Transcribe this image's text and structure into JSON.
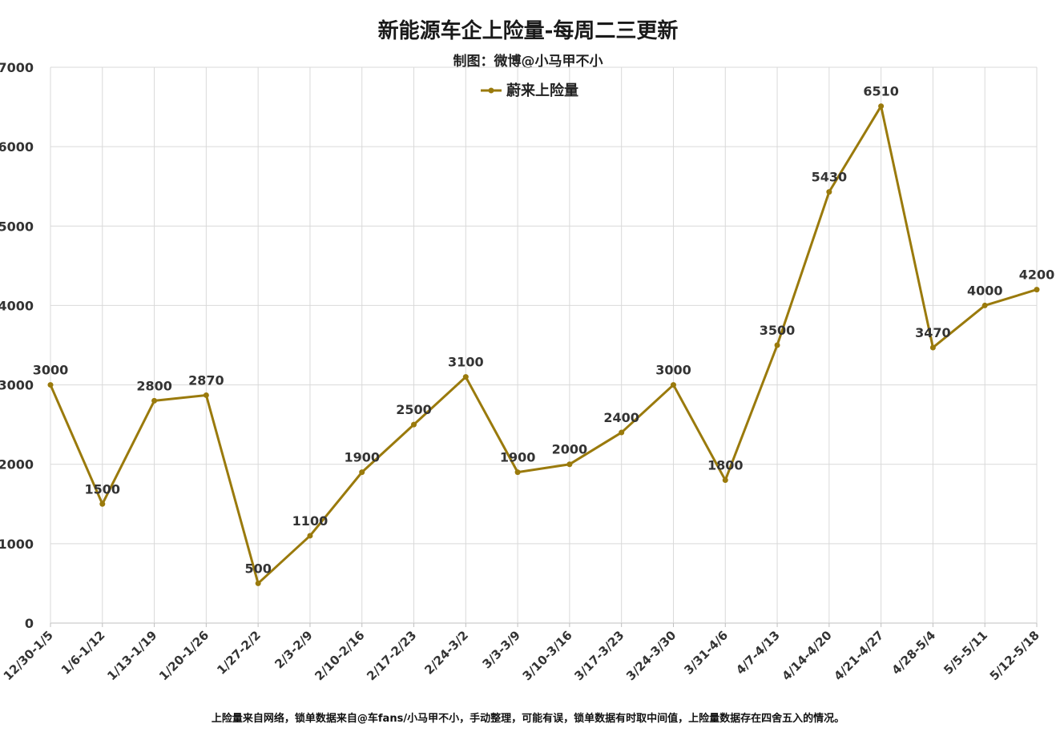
{
  "header": {
    "title": "新能源车企上险量-每周二三更新",
    "subtitle": "制图：微博@小马甲不小"
  },
  "footer": {
    "note": "上险量来自网络，锁单数据来自@车fans/小马甲不小，手动整理，可能有误，锁单数据有时取中间值，上险量数据存在四舍五入的情况。"
  },
  "colors": {
    "series": "#9a7a0c",
    "grid": "#d9d9d9",
    "axis": "#bfbfbf"
  },
  "chart_data": {
    "type": "line",
    "title": "新能源车企上险量-每周二三更新",
    "xlabel": "",
    "ylabel": "",
    "ylim": [
      0,
      7000
    ],
    "yticks": [
      0,
      1000,
      2000,
      3000,
      4000,
      5000,
      6000,
      7000
    ],
    "grid": true,
    "legend_position": "top-center",
    "categories": [
      "12/30-1/5",
      "1/6-1/12",
      "1/13-1/19",
      "1/20-1/26",
      "1/27-2/2",
      "2/3-2/9",
      "2/10-2/16",
      "2/17-2/23",
      "2/24-3/2",
      "3/3-3/9",
      "3/10-3/16",
      "3/17-3/23",
      "3/24-3/30",
      "3/31-4/6",
      "4/7-4/13",
      "4/14-4/20",
      "4/21-4/27",
      "4/28-5/4",
      "5/5-5/11",
      "5/12-5/18"
    ],
    "series": [
      {
        "name": "蔚来上险量",
        "values": [
          3000,
          1500,
          2800,
          2870,
          500,
          1100,
          1900,
          2500,
          3100,
          1900,
          2000,
          2400,
          3000,
          1800,
          3500,
          5430,
          6510,
          3470,
          4000,
          4200
        ]
      }
    ]
  }
}
